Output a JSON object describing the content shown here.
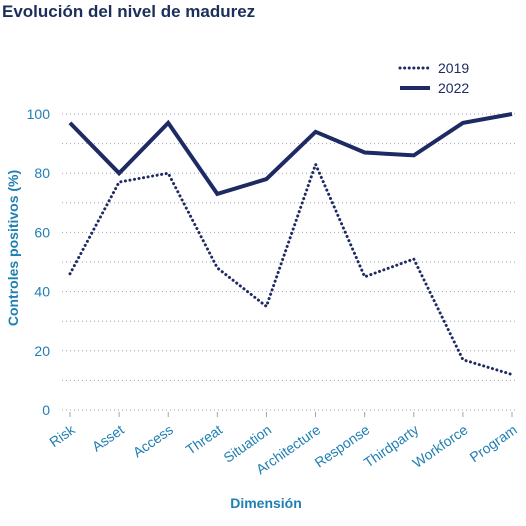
{
  "colors": {
    "navy": "#1e2a63",
    "accent": "#1f7fb3",
    "title": "#1b2f5a",
    "grid": "#9aa3b5"
  },
  "chart_data": {
    "type": "line",
    "title": "Evolución del nivel de madurez",
    "xlabel": "Dimensión",
    "ylabel": "Controles positivos (%)",
    "categories": [
      "Risk",
      "Asset",
      "Access",
      "Threat",
      "Situation",
      "Architecture",
      "Response",
      "Thirdparty",
      "Workforce",
      "Program"
    ],
    "ylim": [
      0,
      100
    ],
    "yticks": [
      0,
      20,
      40,
      60,
      80,
      100
    ],
    "grid": true,
    "legend_position": "top-right",
    "series": [
      {
        "name": "2019",
        "style": "dotted",
        "values": [
          46,
          77,
          80,
          48,
          35,
          83,
          45,
          51,
          17,
          12
        ]
      },
      {
        "name": "2022",
        "style": "solid",
        "values": [
          97,
          80,
          97,
          73,
          78,
          94,
          87,
          86,
          97,
          100
        ]
      }
    ]
  }
}
